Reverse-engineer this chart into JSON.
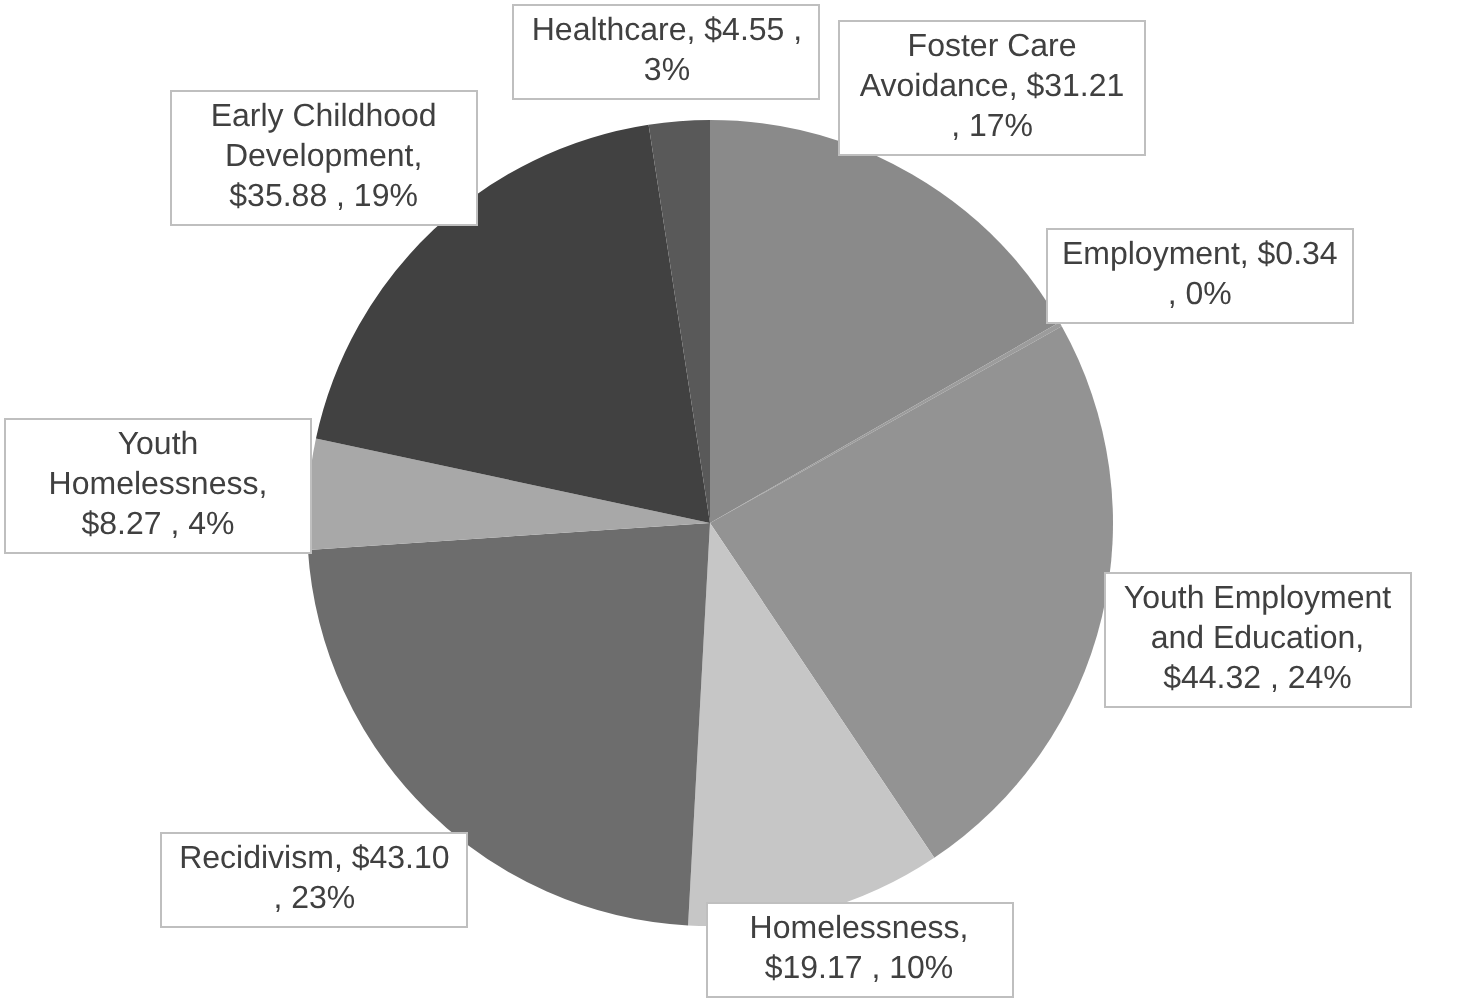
{
  "chart_data": {
    "type": "pie",
    "categories": [
      "Foster Care Avoidance",
      "Employment",
      "Youth Employment and Education",
      "Homelessness",
      "Recidivism",
      "Youth Homelessness",
      "Early Childhood Development",
      "Healthcare"
    ],
    "values": [
      31.21,
      0.34,
      44.32,
      19.17,
      43.1,
      8.27,
      35.88,
      4.55
    ],
    "value_labels": [
      ", $31.21 , 17%",
      ", $0.34 , 0%",
      ", $44.32 , 24%",
      ", $19.17 , 10%",
      ", $43.10 , 23%",
      ", $8.27 , 4%",
      ", $35.88 , 19%",
      ", $4.55 , 3%"
    ],
    "colors": [
      "#8a8a8a",
      "#9c9c9c",
      "#939393",
      "#c6c6c6",
      "#6d6d6d",
      "#a8a8a8",
      "#414141",
      "#595959"
    ],
    "legend": false
  }
}
